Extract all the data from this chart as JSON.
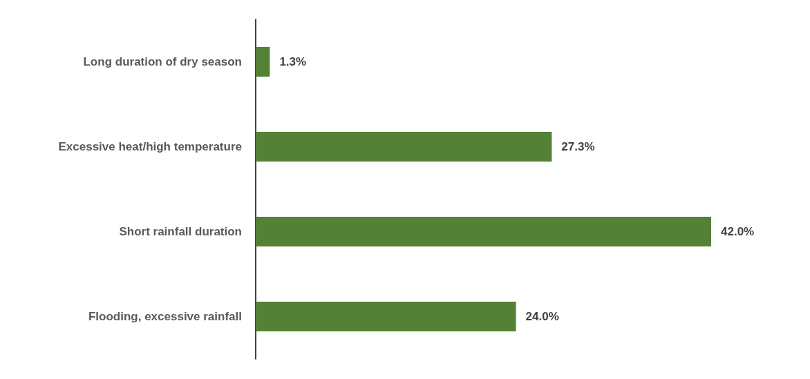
{
  "chart_data": {
    "type": "bar",
    "orientation": "horizontal",
    "categories": [
      "Long duration of dry season",
      "Excessive heat/high temperature",
      "Short rainfall duration",
      "Flooding, excessive rainfall"
    ],
    "values": [
      1.3,
      27.3,
      42.0,
      24.0
    ],
    "value_labels": [
      "1.3%",
      "27.3%",
      "42.0%",
      "24.0%"
    ],
    "color": "#538135"
  }
}
